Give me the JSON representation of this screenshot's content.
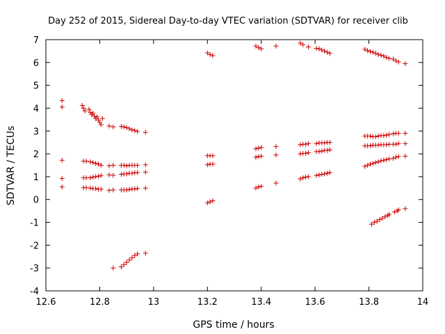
{
  "chart_data": {
    "type": "scatter",
    "title": "Day 252 of 2015, Sidereal Day-to-day VTEC variation (SDTVAR) for receiver clib",
    "xlabel": "GPS time / hours",
    "ylabel": "SDTVAR / TECUs",
    "xlim": [
      12.6,
      14.0
    ],
    "ylim": [
      -4,
      7
    ],
    "xticks": [
      "12.6",
      "12.8",
      "13",
      "13.2",
      "13.4",
      "13.6",
      "13.8",
      "14"
    ],
    "yticks": [
      "-4",
      "-3",
      "-2",
      "-1",
      "0",
      "1",
      "2",
      "3",
      "4",
      "5",
      "6",
      "7"
    ],
    "grid": false,
    "marker": "+",
    "marker_color": "#cc0000",
    "points": [
      [
        12.66,
        4.33
      ],
      [
        12.66,
        4.05
      ],
      [
        12.66,
        1.72
      ],
      [
        12.66,
        0.92
      ],
      [
        12.66,
        0.55
      ],
      [
        12.735,
        4.12
      ],
      [
        12.74,
        4.0
      ],
      [
        12.745,
        3.88
      ],
      [
        12.76,
        3.95
      ],
      [
        12.765,
        3.82
      ],
      [
        12.77,
        3.72
      ],
      [
        12.775,
        3.78
      ],
      [
        12.78,
        3.65
      ],
      [
        12.785,
        3.55
      ],
      [
        12.79,
        3.62
      ],
      [
        12.795,
        3.48
      ],
      [
        12.8,
        3.38
      ],
      [
        12.805,
        3.28
      ],
      [
        12.81,
        3.55
      ],
      [
        12.835,
        3.22
      ],
      [
        12.85,
        3.18
      ],
      [
        12.88,
        3.2
      ],
      [
        12.89,
        3.18
      ],
      [
        12.9,
        3.15
      ],
      [
        12.91,
        3.1
      ],
      [
        12.92,
        3.05
      ],
      [
        12.93,
        3.02
      ],
      [
        12.94,
        2.98
      ],
      [
        12.97,
        2.94
      ],
      [
        12.74,
        1.68
      ],
      [
        12.75,
        1.68
      ],
      [
        12.765,
        1.65
      ],
      [
        12.775,
        1.62
      ],
      [
        12.785,
        1.58
      ],
      [
        12.795,
        1.55
      ],
      [
        12.805,
        1.5
      ],
      [
        12.835,
        1.48
      ],
      [
        12.85,
        1.5
      ],
      [
        12.88,
        1.5
      ],
      [
        12.89,
        1.5
      ],
      [
        12.9,
        1.48
      ],
      [
        12.91,
        1.5
      ],
      [
        12.92,
        1.5
      ],
      [
        12.93,
        1.5
      ],
      [
        12.94,
        1.5
      ],
      [
        12.97,
        1.52
      ],
      [
        12.74,
        0.95
      ],
      [
        12.75,
        0.95
      ],
      [
        12.765,
        0.95
      ],
      [
        12.775,
        0.98
      ],
      [
        12.785,
        1.0
      ],
      [
        12.795,
        1.02
      ],
      [
        12.805,
        1.05
      ],
      [
        12.835,
        1.08
      ],
      [
        12.85,
        1.06
      ],
      [
        12.88,
        1.1
      ],
      [
        12.89,
        1.12
      ],
      [
        12.9,
        1.12
      ],
      [
        12.91,
        1.15
      ],
      [
        12.92,
        1.15
      ],
      [
        12.93,
        1.17
      ],
      [
        12.94,
        1.18
      ],
      [
        12.97,
        1.2
      ],
      [
        12.74,
        0.52
      ],
      [
        12.75,
        0.52
      ],
      [
        12.765,
        0.5
      ],
      [
        12.775,
        0.48
      ],
      [
        12.785,
        0.48
      ],
      [
        12.795,
        0.45
      ],
      [
        12.805,
        0.45
      ],
      [
        12.835,
        0.4
      ],
      [
        12.85,
        0.42
      ],
      [
        12.88,
        0.42
      ],
      [
        12.89,
        0.42
      ],
      [
        12.9,
        0.42
      ],
      [
        12.91,
        0.44
      ],
      [
        12.92,
        0.46
      ],
      [
        12.93,
        0.46
      ],
      [
        12.94,
        0.48
      ],
      [
        12.97,
        0.5
      ],
      [
        12.85,
        -3.0
      ],
      [
        12.88,
        -2.95
      ],
      [
        12.89,
        -2.85
      ],
      [
        12.9,
        -2.75
      ],
      [
        12.91,
        -2.65
      ],
      [
        12.92,
        -2.55
      ],
      [
        12.93,
        -2.45
      ],
      [
        12.94,
        -2.38
      ],
      [
        12.97,
        -2.35
      ],
      [
        13.2,
        6.42
      ],
      [
        13.21,
        6.35
      ],
      [
        13.22,
        6.3
      ],
      [
        13.2,
        1.92
      ],
      [
        13.21,
        1.92
      ],
      [
        13.22,
        1.92
      ],
      [
        13.2,
        1.52
      ],
      [
        13.21,
        1.55
      ],
      [
        13.22,
        1.55
      ],
      [
        13.2,
        -0.15
      ],
      [
        13.21,
        -0.1
      ],
      [
        13.22,
        -0.05
      ],
      [
        13.38,
        6.72
      ],
      [
        13.39,
        6.65
      ],
      [
        13.4,
        6.6
      ],
      [
        13.38,
        2.22
      ],
      [
        13.39,
        2.25
      ],
      [
        13.4,
        2.28
      ],
      [
        13.38,
        1.85
      ],
      [
        13.39,
        1.88
      ],
      [
        13.4,
        1.9
      ],
      [
        13.38,
        0.5
      ],
      [
        13.39,
        0.55
      ],
      [
        13.4,
        0.58
      ],
      [
        13.455,
        6.72
      ],
      [
        13.455,
        2.32
      ],
      [
        13.455,
        1.95
      ],
      [
        13.455,
        0.72
      ],
      [
        13.545,
        6.85
      ],
      [
        13.555,
        6.78
      ],
      [
        13.575,
        6.68
      ],
      [
        13.545,
        2.4
      ],
      [
        13.555,
        2.42
      ],
      [
        13.565,
        2.42
      ],
      [
        13.575,
        2.45
      ],
      [
        13.545,
        2.0
      ],
      [
        13.555,
        2.02
      ],
      [
        13.565,
        2.02
      ],
      [
        13.575,
        2.05
      ],
      [
        13.545,
        0.9
      ],
      [
        13.555,
        0.95
      ],
      [
        13.565,
        0.98
      ],
      [
        13.575,
        1.0
      ],
      [
        13.605,
        6.62
      ],
      [
        13.615,
        6.6
      ],
      [
        13.625,
        6.55
      ],
      [
        13.635,
        6.5
      ],
      [
        13.645,
        6.45
      ],
      [
        13.655,
        6.4
      ],
      [
        13.605,
        2.45
      ],
      [
        13.615,
        2.48
      ],
      [
        13.625,
        2.48
      ],
      [
        13.635,
        2.48
      ],
      [
        13.645,
        2.5
      ],
      [
        13.655,
        2.5
      ],
      [
        13.605,
        2.1
      ],
      [
        13.615,
        2.1
      ],
      [
        13.625,
        2.12
      ],
      [
        13.635,
        2.15
      ],
      [
        13.645,
        2.15
      ],
      [
        13.655,
        2.18
      ],
      [
        13.605,
        1.05
      ],
      [
        13.615,
        1.08
      ],
      [
        13.625,
        1.1
      ],
      [
        13.635,
        1.12
      ],
      [
        13.645,
        1.15
      ],
      [
        13.655,
        1.18
      ],
      [
        13.785,
        6.58
      ],
      [
        13.795,
        6.52
      ],
      [
        13.805,
        6.48
      ],
      [
        13.815,
        6.45
      ],
      [
        13.825,
        6.4
      ],
      [
        13.835,
        6.35
      ],
      [
        13.845,
        6.32
      ],
      [
        13.855,
        6.28
      ],
      [
        13.865,
        6.22
      ],
      [
        13.875,
        6.18
      ],
      [
        13.89,
        6.15
      ],
      [
        13.9,
        6.08
      ],
      [
        13.91,
        6.02
      ],
      [
        13.935,
        5.95
      ],
      [
        13.785,
        2.78
      ],
      [
        13.795,
        2.78
      ],
      [
        13.805,
        2.78
      ],
      [
        13.815,
        2.75
      ],
      [
        13.825,
        2.75
      ],
      [
        13.835,
        2.78
      ],
      [
        13.845,
        2.8
      ],
      [
        13.855,
        2.8
      ],
      [
        13.865,
        2.82
      ],
      [
        13.875,
        2.85
      ],
      [
        13.89,
        2.88
      ],
      [
        13.9,
        2.9
      ],
      [
        13.91,
        2.9
      ],
      [
        13.935,
        2.9
      ],
      [
        13.785,
        2.35
      ],
      [
        13.795,
        2.35
      ],
      [
        13.805,
        2.35
      ],
      [
        13.815,
        2.38
      ],
      [
        13.825,
        2.38
      ],
      [
        13.835,
        2.38
      ],
      [
        13.845,
        2.4
      ],
      [
        13.855,
        2.4
      ],
      [
        13.865,
        2.4
      ],
      [
        13.875,
        2.42
      ],
      [
        13.89,
        2.42
      ],
      [
        13.9,
        2.42
      ],
      [
        13.91,
        2.45
      ],
      [
        13.935,
        2.45
      ],
      [
        13.785,
        1.45
      ],
      [
        13.795,
        1.5
      ],
      [
        13.805,
        1.55
      ],
      [
        13.815,
        1.58
      ],
      [
        13.825,
        1.62
      ],
      [
        13.835,
        1.65
      ],
      [
        13.845,
        1.7
      ],
      [
        13.855,
        1.72
      ],
      [
        13.865,
        1.75
      ],
      [
        13.875,
        1.78
      ],
      [
        13.89,
        1.8
      ],
      [
        13.9,
        1.85
      ],
      [
        13.91,
        1.88
      ],
      [
        13.935,
        1.9
      ],
      [
        13.81,
        -1.08
      ],
      [
        13.82,
        -1.0
      ],
      [
        13.83,
        -0.95
      ],
      [
        13.84,
        -0.88
      ],
      [
        13.85,
        -0.82
      ],
      [
        13.86,
        -0.75
      ],
      [
        13.87,
        -0.7
      ],
      [
        13.875,
        -0.65
      ],
      [
        13.895,
        -0.55
      ],
      [
        13.905,
        -0.5
      ],
      [
        13.91,
        -0.45
      ],
      [
        13.935,
        -0.4
      ]
    ]
  }
}
